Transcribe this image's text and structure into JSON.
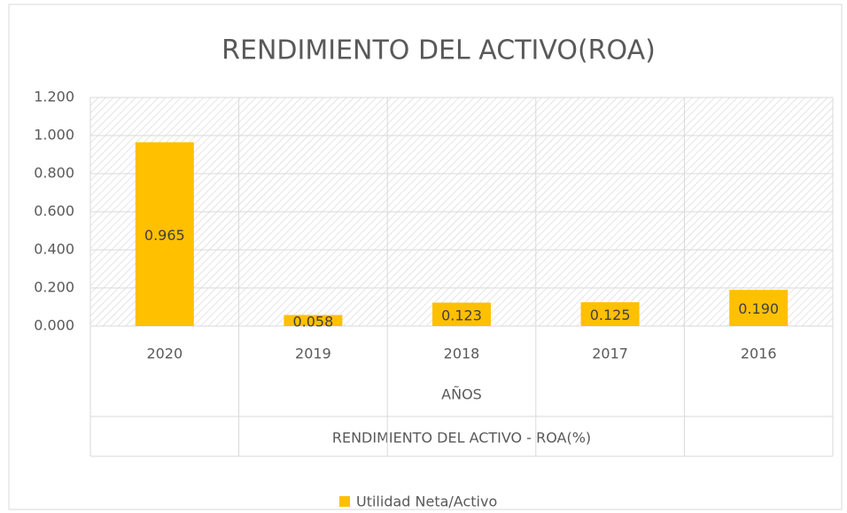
{
  "chart_data": {
    "type": "bar",
    "title": "RENDIMIENTO DEL ACTIVO(ROA)",
    "categories": [
      "2020",
      "2019",
      "2018",
      "2017",
      "2016"
    ],
    "xlabel": "AÑOS",
    "caption": "RENDIMIENTO DEL ACTIVO - ROA(%)",
    "series": [
      {
        "name": "Utilidad Neta/Activo",
        "color": "#ffc000",
        "values": [
          0.965,
          0.058,
          0.123,
          0.125,
          0.19
        ],
        "value_labels": [
          "0.965",
          "0.058",
          "0.123",
          "0.125",
          "0.190"
        ]
      }
    ],
    "ylim": [
      0,
      1.2
    ],
    "yticks": [
      {
        "value": 0,
        "label": "0.000"
      },
      {
        "value": 0.2,
        "label": "0.200"
      },
      {
        "value": 0.4,
        "label": "0.400"
      },
      {
        "value": 0.6,
        "label": "0.600"
      },
      {
        "value": 0.8,
        "label": "0.800"
      },
      {
        "value": 1,
        "label": "1.000"
      },
      {
        "value": 1.2,
        "label": "1.200"
      }
    ],
    "grid": true,
    "legend": "bottom"
  }
}
